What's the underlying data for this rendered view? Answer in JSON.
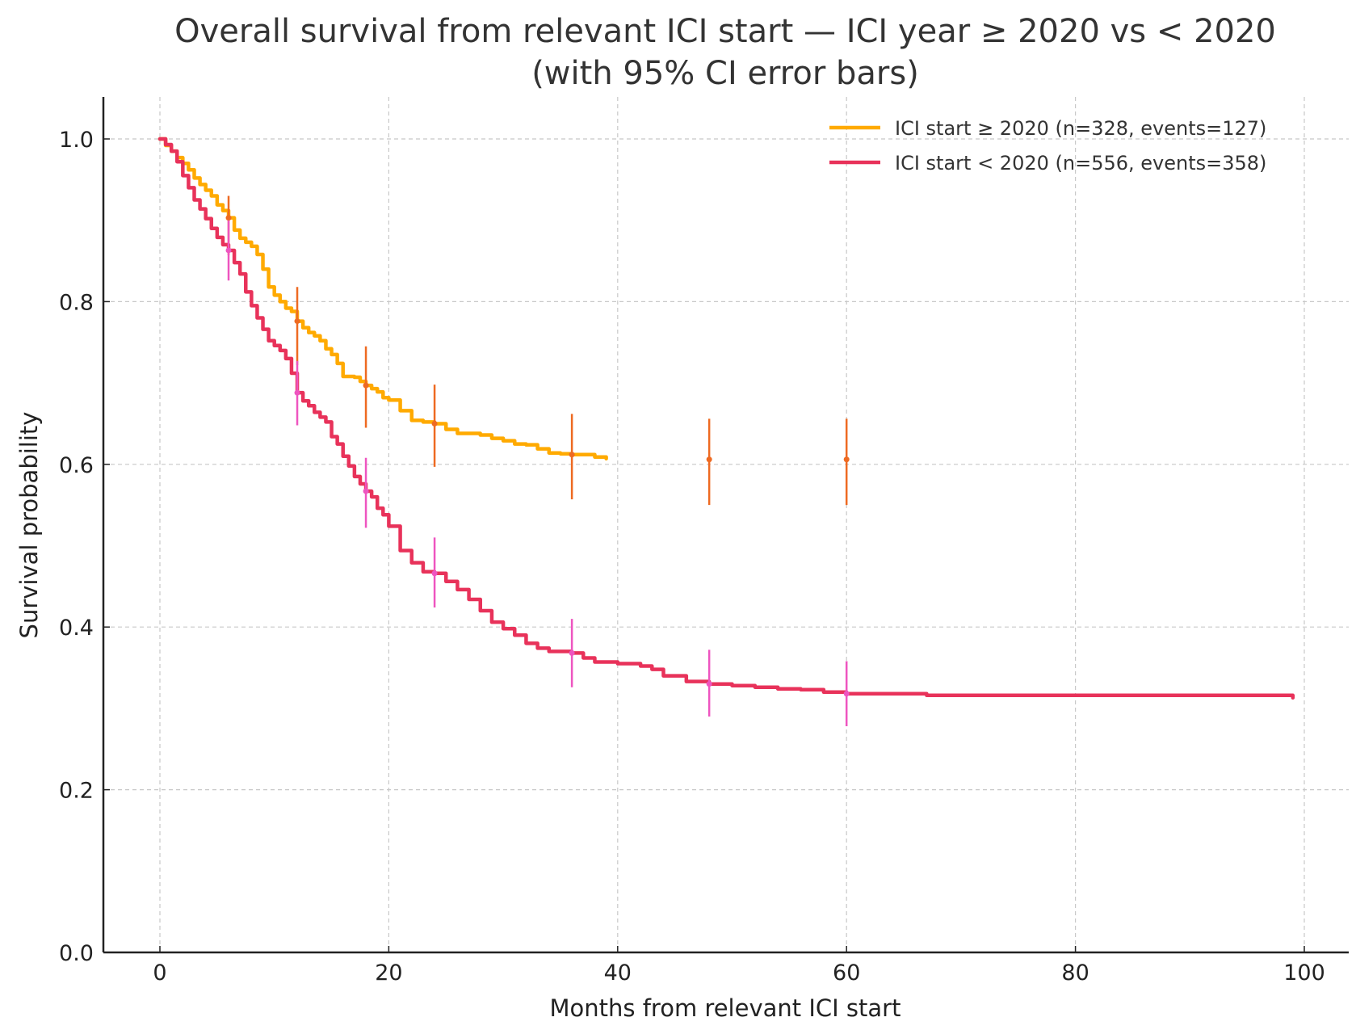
{
  "chart_data": {
    "type": "line",
    "subtype": "kaplan-meier step",
    "title": "Overall survival from relevant ICI start — ICI year ≥ 2020 vs < 2020",
    "subtitle": "(with 95% CI error bars)",
    "xlabel": "Months from relevant ICI start",
    "ylabel": "Survival probability",
    "xlim": [
      -5,
      103
    ],
    "ylim": [
      0,
      1.05
    ],
    "xticks": [
      0,
      20,
      40,
      60,
      80,
      100
    ],
    "xtick_labels": [
      "0",
      "20",
      "40",
      "60",
      "80",
      "100"
    ],
    "yticks": [
      0.0,
      0.2,
      0.4,
      0.6,
      0.8,
      1.0
    ],
    "ytick_labels": [
      "0.0",
      "0.2",
      "0.4",
      "0.6",
      "0.8",
      "1.0"
    ],
    "grid": true,
    "legend_position": "top-right",
    "series": [
      {
        "name": "ICI start ≥ 2020 (n=328, events=127)",
        "color": "#FFAA00",
        "errorbar_color": "#EE6A22",
        "x": [
          0,
          0.5,
          1,
          1.5,
          2,
          2.5,
          3,
          3.5,
          4,
          4.5,
          5,
          5.5,
          6,
          6.5,
          7,
          7.5,
          8,
          8.5,
          9,
          9.5,
          10,
          10.5,
          11,
          11.5,
          12,
          12.5,
          13,
          13.5,
          14,
          14.5,
          15,
          15.5,
          16,
          16.5,
          17,
          17.5,
          18,
          18.5,
          19,
          19.5,
          20,
          21,
          22,
          23,
          24,
          25,
          26,
          27,
          28,
          29,
          30,
          31,
          32,
          33,
          34,
          35,
          36,
          37,
          38,
          39
        ],
        "y": [
          1.0,
          0.992,
          0.985,
          0.977,
          0.97,
          0.962,
          0.952,
          0.944,
          0.937,
          0.93,
          0.919,
          0.912,
          0.903,
          0.888,
          0.878,
          0.873,
          0.868,
          0.858,
          0.84,
          0.818,
          0.808,
          0.8,
          0.792,
          0.788,
          0.776,
          0.768,
          0.762,
          0.758,
          0.752,
          0.742,
          0.735,
          0.724,
          0.708,
          0.708,
          0.707,
          0.702,
          0.697,
          0.693,
          0.689,
          0.682,
          0.679,
          0.666,
          0.654,
          0.652,
          0.65,
          0.643,
          0.638,
          0.638,
          0.636,
          0.632,
          0.629,
          0.625,
          0.624,
          0.619,
          0.614,
          0.613,
          0.612,
          0.612,
          0.609,
          0.607
        ],
        "ci_points": [
          {
            "t": 6,
            "est": 0.903,
            "lower": 0.857,
            "upper": 0.93
          },
          {
            "t": 12,
            "est": 0.776,
            "lower": 0.722,
            "upper": 0.818
          },
          {
            "t": 18,
            "est": 0.697,
            "lower": 0.645,
            "upper": 0.745
          },
          {
            "t": 24,
            "est": 0.65,
            "lower": 0.597,
            "upper": 0.698
          },
          {
            "t": 36,
            "est": 0.612,
            "lower": 0.557,
            "upper": 0.662
          },
          {
            "t": 48,
            "est": 0.606,
            "lower": 0.55,
            "upper": 0.656
          },
          {
            "t": 60,
            "est": 0.606,
            "lower": 0.55,
            "upper": 0.656
          }
        ]
      },
      {
        "name": "ICI start < 2020 (n=556, events=358)",
        "color": "#E8325A",
        "errorbar_color": "#EE55C0",
        "x": [
          0,
          0.5,
          1,
          1.5,
          2,
          2.5,
          3,
          3.5,
          4,
          4.5,
          5,
          5.5,
          6,
          6.5,
          7,
          7.5,
          8,
          8.5,
          9,
          9.5,
          10,
          10.5,
          11,
          11.5,
          12,
          12.5,
          13,
          13.5,
          14,
          14.5,
          15,
          15.5,
          16,
          16.5,
          17,
          17.5,
          18,
          18.5,
          19,
          19.5,
          20,
          21,
          22,
          23,
          24,
          25,
          26,
          27,
          28,
          29,
          30,
          31,
          32,
          33,
          34,
          35,
          36,
          37,
          38,
          40,
          42,
          43,
          44,
          46,
          48,
          50,
          52,
          54,
          56,
          58,
          60,
          62,
          64,
          66,
          67,
          70,
          80,
          90,
          99
        ],
        "y": [
          1.0,
          0.993,
          0.985,
          0.972,
          0.955,
          0.94,
          0.925,
          0.914,
          0.902,
          0.89,
          0.879,
          0.87,
          0.863,
          0.848,
          0.834,
          0.812,
          0.795,
          0.78,
          0.766,
          0.752,
          0.746,
          0.74,
          0.73,
          0.712,
          0.688,
          0.678,
          0.672,
          0.664,
          0.658,
          0.652,
          0.634,
          0.625,
          0.61,
          0.598,
          0.585,
          0.576,
          0.567,
          0.56,
          0.546,
          0.538,
          0.524,
          0.494,
          0.479,
          0.468,
          0.466,
          0.456,
          0.446,
          0.434,
          0.42,
          0.406,
          0.398,
          0.39,
          0.38,
          0.374,
          0.37,
          0.37,
          0.368,
          0.362,
          0.357,
          0.355,
          0.352,
          0.348,
          0.34,
          0.333,
          0.33,
          0.328,
          0.326,
          0.324,
          0.323,
          0.32,
          0.318,
          0.318,
          0.318,
          0.318,
          0.316,
          0.316,
          0.316,
          0.316,
          0.313
        ],
        "ci_points": [
          {
            "t": 6,
            "est": 0.863,
            "lower": 0.826,
            "upper": 0.9
          },
          {
            "t": 12,
            "est": 0.688,
            "lower": 0.648,
            "upper": 0.727
          },
          {
            "t": 18,
            "est": 0.567,
            "lower": 0.522,
            "upper": 0.608
          },
          {
            "t": 24,
            "est": 0.466,
            "lower": 0.424,
            "upper": 0.51
          },
          {
            "t": 36,
            "est": 0.368,
            "lower": 0.326,
            "upper": 0.41
          },
          {
            "t": 48,
            "est": 0.33,
            "lower": 0.29,
            "upper": 0.372
          },
          {
            "t": 60,
            "est": 0.318,
            "lower": 0.278,
            "upper": 0.358
          }
        ]
      }
    ]
  }
}
